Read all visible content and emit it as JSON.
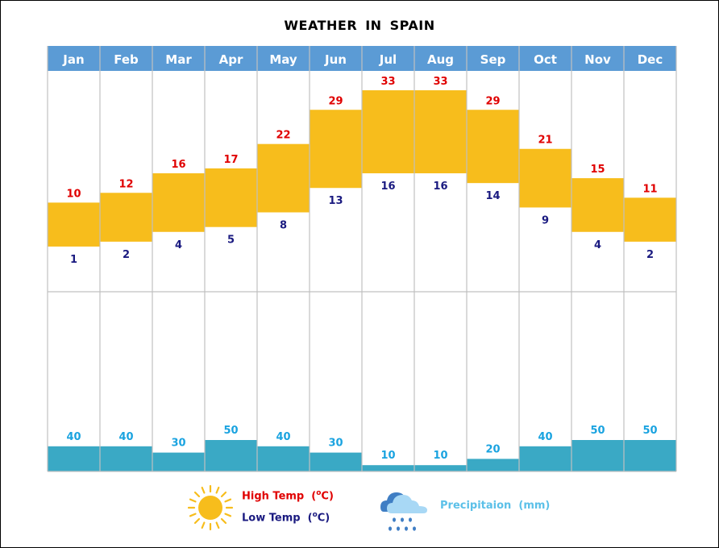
{
  "chart_data": {
    "type": "bar",
    "title": "WEATHER  IN  SPAIN",
    "categories": [
      "Jan",
      "Feb",
      "Mar",
      "Apr",
      "May",
      "Jun",
      "Jul",
      "Aug",
      "Sep",
      "Oct",
      "Nov",
      "Dec"
    ],
    "series": [
      {
        "name": "High Temp",
        "unit": "°C",
        "values": [
          10,
          12,
          16,
          17,
          22,
          29,
          33,
          33,
          29,
          21,
          15,
          11
        ]
      },
      {
        "name": "Low Temp",
        "unit": "°C",
        "values": [
          1,
          2,
          4,
          5,
          8,
          13,
          16,
          16,
          14,
          9,
          4,
          2
        ]
      },
      {
        "name": "Precipitaion",
        "unit": "mm",
        "values": [
          40,
          40,
          30,
          50,
          40,
          30,
          10,
          10,
          20,
          40,
          50,
          50
        ]
      }
    ],
    "xlabel": "",
    "ylabel": "",
    "grid": true,
    "legend_position": "bottom",
    "legend": {
      "high": {
        "label": "High Temp",
        "unit": "C",
        "degree": "o"
      },
      "low": {
        "label": "Low Temp",
        "unit": "C",
        "degree": "o"
      },
      "precip": {
        "label": "Precipitaion",
        "unit": "(mm)"
      }
    }
  },
  "colors": {
    "header": "#5B9BD5",
    "header_text": "#FFFFFF",
    "temp_band": "#F7BD1C",
    "high_text": "#E00000",
    "low_text": "#1A1A80",
    "precip_bar": "#3AA9C5",
    "precip_text": "#1AA3E0",
    "grid": "#C0C0C0",
    "sun": "#F7BD1C"
  },
  "icons": {
    "sun": "sun-icon",
    "rain": "rain-cloud-icon"
  }
}
